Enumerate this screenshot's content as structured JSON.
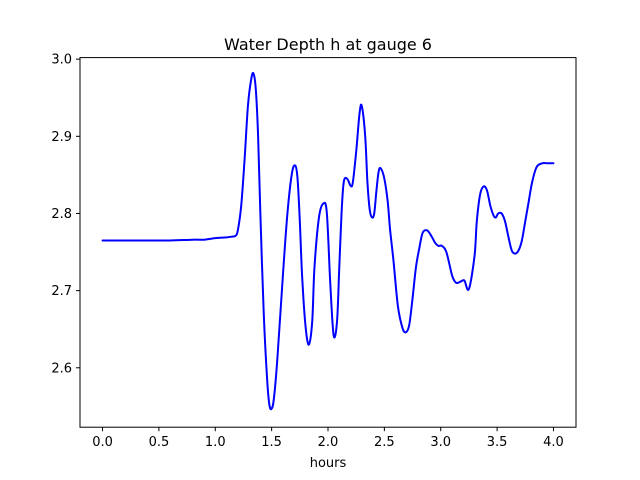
{
  "chart_data": {
    "type": "line",
    "title": "Water Depth h at gauge 6",
    "xlabel": "hours",
    "ylabel": "",
    "xlim": [
      -0.2,
      4.2
    ],
    "ylim": [
      2.523,
      3.002
    ],
    "xticks": [
      0.0,
      0.5,
      1.0,
      1.5,
      2.0,
      2.5,
      3.0,
      3.5,
      4.0
    ],
    "xtick_labels": [
      "0.0",
      "0.5",
      "1.0",
      "1.5",
      "2.0",
      "2.5",
      "3.0",
      "3.5",
      "4.0"
    ],
    "yticks": [
      2.6,
      2.7,
      2.8,
      2.9,
      3.0
    ],
    "ytick_labels": [
      "2.6",
      "2.7",
      "2.8",
      "2.9",
      "3.0"
    ],
    "grid": false,
    "series": [
      {
        "color": "#0000ff",
        "x": [
          0.0,
          0.2,
          0.4,
          0.6,
          0.8,
          0.9,
          1.0,
          1.1,
          1.15,
          1.18,
          1.2,
          1.23,
          1.26,
          1.29,
          1.32,
          1.34,
          1.36,
          1.38,
          1.4,
          1.43,
          1.46,
          1.48,
          1.5,
          1.52,
          1.55,
          1.6,
          1.64,
          1.68,
          1.71,
          1.73,
          1.75,
          1.77,
          1.8,
          1.83,
          1.86,
          1.88,
          1.92,
          1.96,
          1.99,
          2.02,
          2.05,
          2.08,
          2.1,
          2.12,
          2.14,
          2.17,
          2.2,
          2.22,
          2.25,
          2.28,
          2.3,
          2.33,
          2.35,
          2.37,
          2.39,
          2.41,
          2.43,
          2.45,
          2.47,
          2.5,
          2.53,
          2.55,
          2.58,
          2.62,
          2.66,
          2.69,
          2.72,
          2.75,
          2.78,
          2.81,
          2.84,
          2.88,
          2.92,
          2.95,
          2.98,
          3.01,
          3.05,
          3.1,
          3.13,
          3.15,
          3.18,
          3.21,
          3.25,
          3.3,
          3.32,
          3.35,
          3.38,
          3.41,
          3.44,
          3.47,
          3.49,
          3.51,
          3.54,
          3.57,
          3.6,
          3.63,
          3.66,
          3.69,
          3.72,
          3.75,
          3.78,
          3.81,
          3.85,
          3.9,
          3.95,
          3.98,
          4.0
        ],
        "y": [
          2.765,
          2.765,
          2.765,
          2.765,
          2.766,
          2.766,
          2.768,
          2.769,
          2.77,
          2.771,
          2.778,
          2.81,
          2.87,
          2.94,
          2.975,
          2.981,
          2.96,
          2.9,
          2.8,
          2.67,
          2.585,
          2.552,
          2.547,
          2.56,
          2.61,
          2.72,
          2.8,
          2.852,
          2.862,
          2.845,
          2.79,
          2.72,
          2.655,
          2.63,
          2.66,
          2.73,
          2.795,
          2.813,
          2.8,
          2.71,
          2.642,
          2.66,
          2.73,
          2.8,
          2.841,
          2.845,
          2.836,
          2.84,
          2.88,
          2.93,
          2.939,
          2.9,
          2.84,
          2.805,
          2.795,
          2.8,
          2.83,
          2.855,
          2.858,
          2.845,
          2.815,
          2.78,
          2.74,
          2.68,
          2.652,
          2.646,
          2.655,
          2.69,
          2.73,
          2.755,
          2.775,
          2.778,
          2.77,
          2.762,
          2.758,
          2.758,
          2.75,
          2.72,
          2.711,
          2.71,
          2.712,
          2.713,
          2.702,
          2.745,
          2.79,
          2.825,
          2.835,
          2.83,
          2.81,
          2.797,
          2.795,
          2.8,
          2.8,
          2.79,
          2.77,
          2.752,
          2.748,
          2.752,
          2.765,
          2.79,
          2.815,
          2.84,
          2.86,
          2.865,
          2.865,
          2.865,
          2.865
        ]
      }
    ]
  }
}
